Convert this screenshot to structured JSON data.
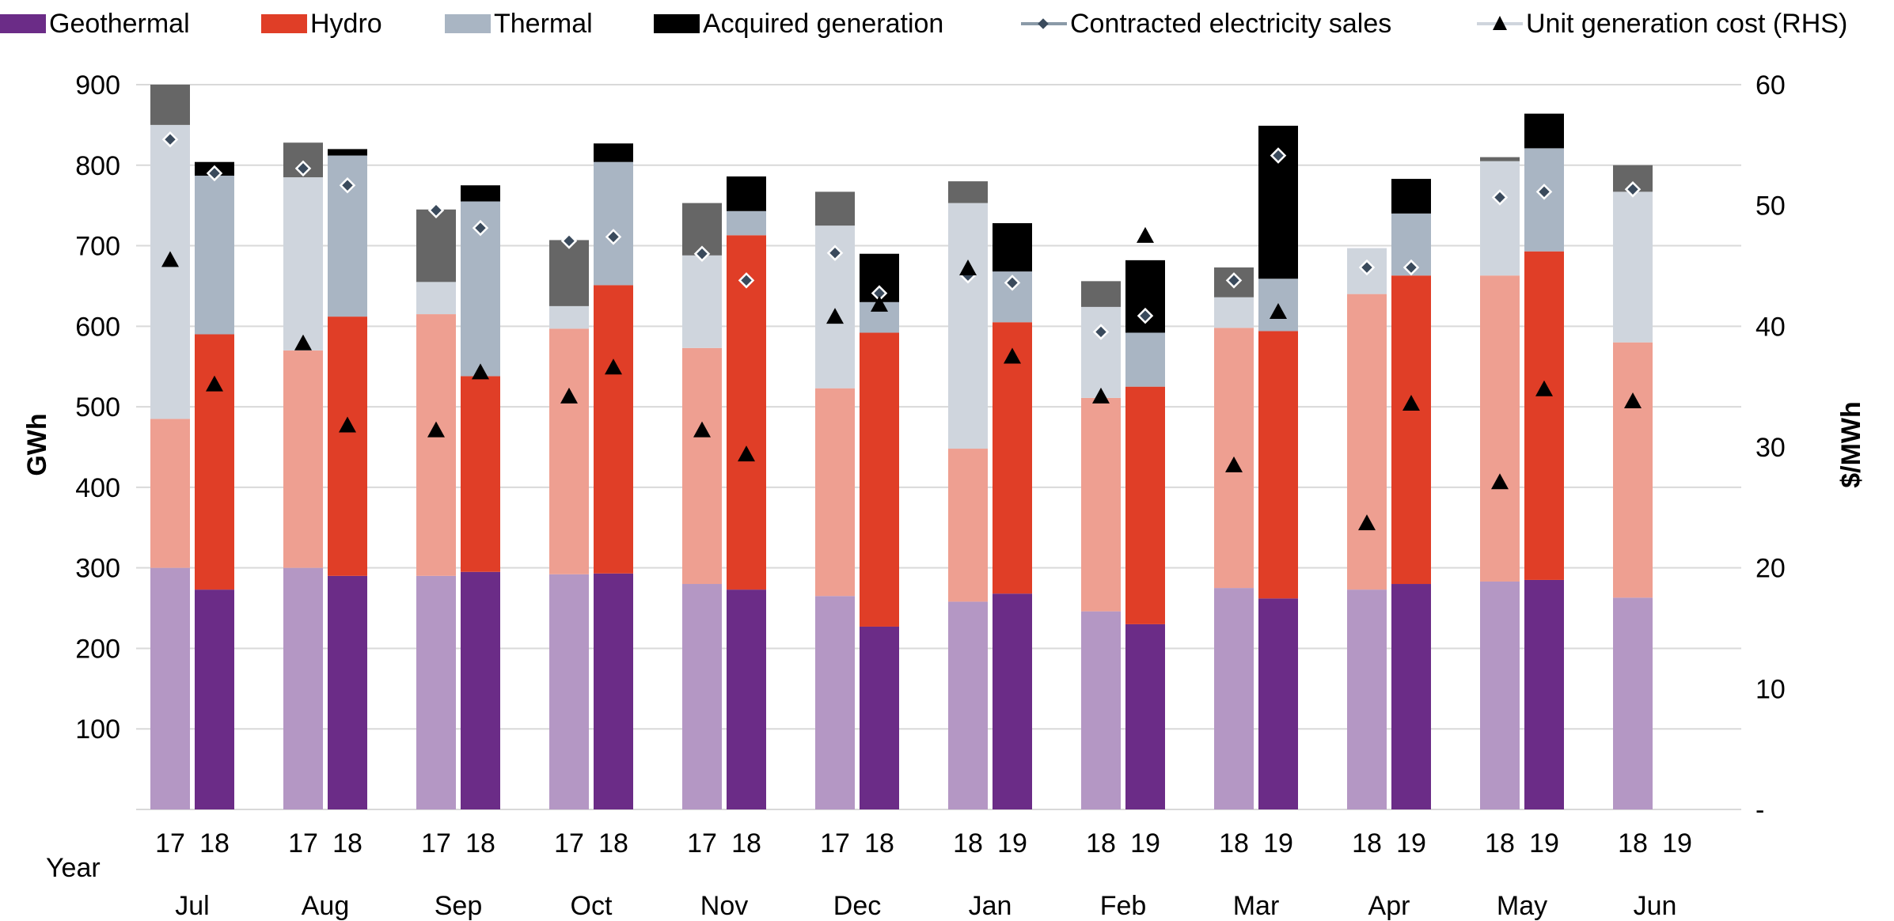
{
  "legend": {
    "geothermal": "Geothermal",
    "hydro": "Hydro",
    "thermal": "Thermal",
    "acquired": "Acquired generation",
    "contracted": "Contracted electricity sales",
    "unit_cost": "Unit generation cost (RHS)"
  },
  "colors": {
    "geothermal_dark": "#6b2c87",
    "geothermal_light": "#b497c4",
    "hydro_dark": "#e03e27",
    "hydro_light": "#ee9f91",
    "thermal_dark": "#a9b5c3",
    "thermal_light": "#cfd5dd",
    "acquired_dark": "#000000",
    "acquired_light": "#666666",
    "grid": "#d9d9d9",
    "contracted_marker": "#3a4a5c",
    "cost_marker": "#000000"
  },
  "chart_data": {
    "type": "bar",
    "stacked": true,
    "ylabel": "GWh",
    "y2label": "$/MWh",
    "ylim": [
      0,
      900
    ],
    "y2lim": [
      0,
      60
    ],
    "yticks": [
      "100",
      "200",
      "300",
      "400",
      "500",
      "600",
      "700",
      "800",
      "900"
    ],
    "y2ticks": [
      "-",
      "10",
      "20",
      "30",
      "40",
      "50",
      "60"
    ],
    "year_label": "Year",
    "months": [
      {
        "month": "Jul",
        "years": [
          "17",
          "18"
        ]
      },
      {
        "month": "Aug",
        "years": [
          "17",
          "18"
        ]
      },
      {
        "month": "Sep",
        "years": [
          "17",
          "18"
        ]
      },
      {
        "month": "Oct",
        "years": [
          "17",
          "18"
        ]
      },
      {
        "month": "Nov",
        "years": [
          "17",
          "18"
        ]
      },
      {
        "month": "Dec",
        "years": [
          "17",
          "18"
        ]
      },
      {
        "month": "Jan",
        "years": [
          "18",
          "19"
        ]
      },
      {
        "month": "Feb",
        "years": [
          "18",
          "19"
        ]
      },
      {
        "month": "Mar",
        "years": [
          "18",
          "19"
        ]
      },
      {
        "month": "Apr",
        "years": [
          "18",
          "19"
        ]
      },
      {
        "month": "May",
        "years": [
          "18",
          "19"
        ]
      },
      {
        "month": "Jun",
        "years": [
          "18",
          "19"
        ]
      }
    ],
    "series": [
      {
        "name": "Geothermal",
        "prior": [
          300,
          300,
          290,
          292,
          280,
          265,
          258,
          246,
          275,
          273,
          283,
          263
        ],
        "current": [
          273,
          290,
          295,
          293,
          273,
          227,
          268,
          230,
          262,
          280,
          285,
          null
        ]
      },
      {
        "name": "Hydro",
        "prior": [
          185,
          270,
          325,
          305,
          293,
          258,
          190,
          265,
          323,
          367,
          380,
          317
        ],
        "current": [
          317,
          322,
          243,
          358,
          440,
          365,
          337,
          295,
          332,
          383,
          408,
          null
        ]
      },
      {
        "name": "Thermal",
        "prior": [
          365,
          215,
          40,
          28,
          115,
          202,
          305,
          113,
          38,
          57,
          142,
          187
        ],
        "current": [
          197,
          200,
          217,
          153,
          30,
          38,
          63,
          67,
          65,
          77,
          128,
          null
        ]
      },
      {
        "name": "Acquired generation",
        "prior": [
          50,
          43,
          90,
          82,
          65,
          42,
          27,
          32,
          37,
          0,
          5,
          33
        ],
        "current": [
          17,
          8,
          20,
          23,
          43,
          60,
          60,
          90,
          190,
          43,
          43,
          null
        ]
      },
      {
        "name": "Contracted electricity sales",
        "prior": [
          832,
          796,
          744,
          706,
          690,
          691,
          663,
          593,
          657,
          673,
          760,
          770
        ],
        "current": [
          790,
          775,
          722,
          711,
          657,
          641,
          654,
          613,
          812,
          673,
          767,
          null
        ]
      },
      {
        "name": "Unit generation cost (RHS)",
        "prior": [
          45.5,
          38.6,
          31.4,
          34.2,
          31.4,
          40.8,
          44.8,
          34.2,
          28.5,
          23.7,
          27.1,
          33.8
        ],
        "current": [
          35.2,
          31.8,
          36.2,
          36.6,
          29.4,
          41.8,
          37.5,
          47.5,
          41.2,
          33.6,
          34.8,
          null
        ]
      }
    ]
  }
}
